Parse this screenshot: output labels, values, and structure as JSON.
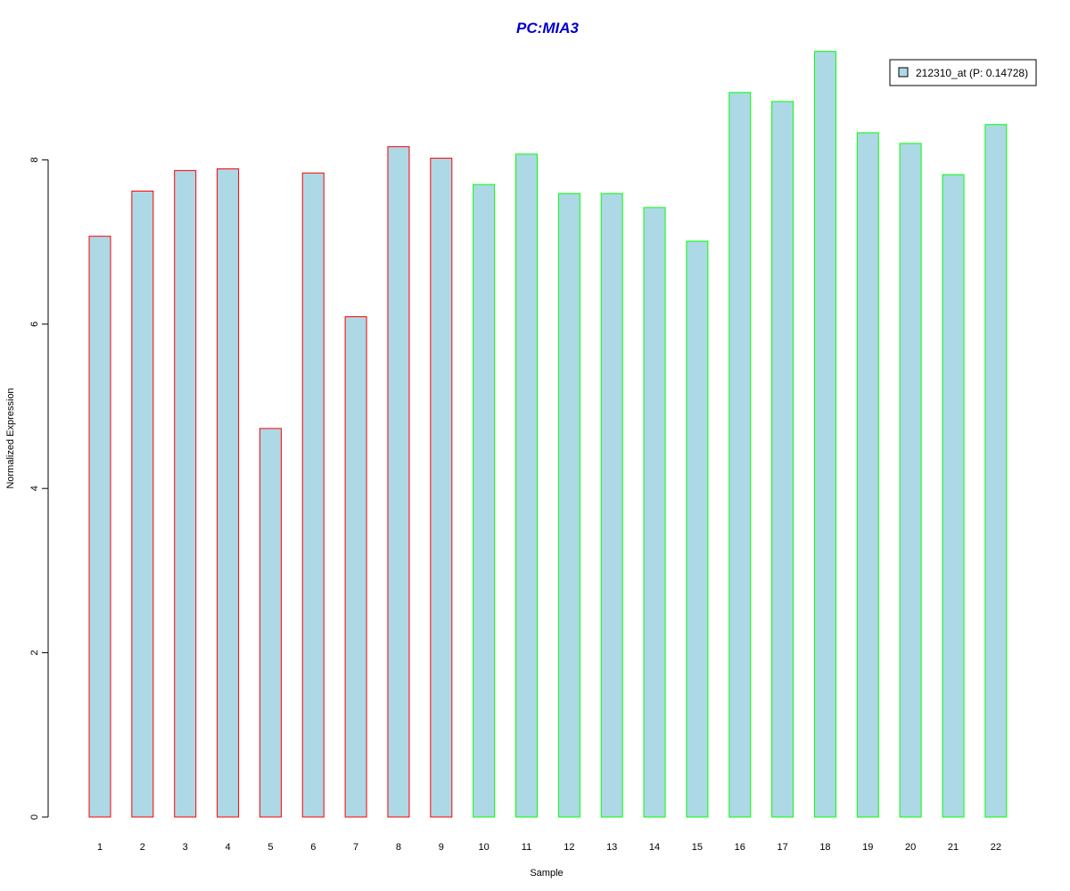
{
  "chart_data": {
    "type": "bar",
    "title": "PC:MIA3",
    "xlabel": "Sample",
    "ylabel": "Normalized Expression",
    "ylim": [
      0,
      9.5
    ],
    "yticks": [
      "0",
      "2",
      "4",
      "6",
      "8"
    ],
    "categories": [
      "1",
      "2",
      "3",
      "4",
      "5",
      "6",
      "7",
      "8",
      "9",
      "10",
      "11",
      "12",
      "13",
      "14",
      "15",
      "16",
      "17",
      "18",
      "19",
      "20",
      "21",
      "22"
    ],
    "series": [
      {
        "name": "212310_at (P: 0.14728)",
        "values": [
          7.07,
          7.62,
          7.87,
          7.89,
          4.73,
          7.84,
          6.09,
          8.16,
          8.02,
          7.7,
          8.07,
          7.59,
          7.59,
          7.42,
          7.01,
          8.82,
          8.71,
          9.32,
          8.33,
          8.2,
          7.82,
          8.43
        ]
      }
    ],
    "group_labels": [
      "group-1",
      "group-1",
      "group-1",
      "group-1",
      "group-1",
      "group-1",
      "group-1",
      "group-1",
      "group-1",
      "group-2",
      "group-2",
      "group-2",
      "group-2",
      "group-2",
      "group-2",
      "group-2",
      "group-2",
      "group-2",
      "group-2",
      "group-2",
      "group-2",
      "group-2"
    ],
    "colors": {
      "bar_fill": "#add8e6",
      "group_1_border": "#ff0000",
      "group_2_border": "#00ff00",
      "title": "#0000cd",
      "axis": "#000000"
    },
    "legend_position": "top-right",
    "grid": false
  }
}
